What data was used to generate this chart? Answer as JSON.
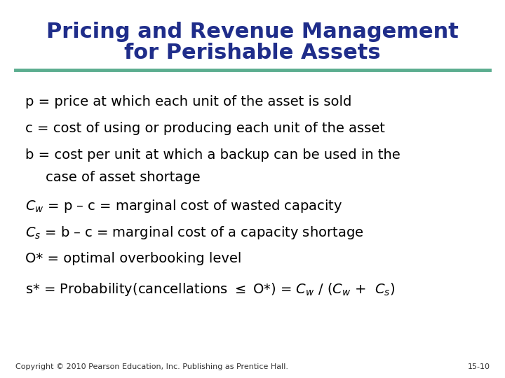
{
  "title_line1": "Pricing and Revenue Management",
  "title_line2": "for Perishable Assets",
  "title_color": "#1F2D8A",
  "title_fontsize": 22,
  "separator_color": "#5BAD8F",
  "background_color": "#FFFFFF",
  "body_fontsize": 14,
  "footer_text": "Copyright © 2010 Pearson Education, Inc. Publishing as Prentice Hall.",
  "footer_right": "15-10",
  "footer_color": "#333333",
  "footer_fontsize": 8
}
